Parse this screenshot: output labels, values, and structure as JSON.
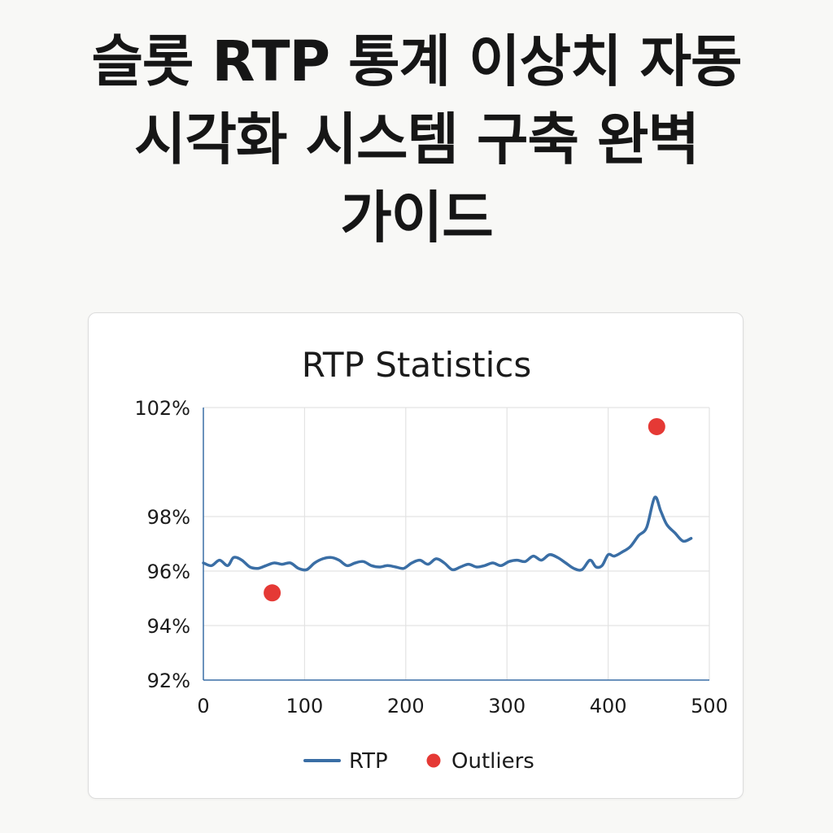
{
  "headline": "슬롯 RTP 통계 이상치 자동 시각화 시스템 구축 완벽 가이드",
  "chart_data": {
    "type": "line",
    "title": "RTP Statistics",
    "xlabel": "",
    "ylabel": "",
    "xlim": [
      0,
      500
    ],
    "ylim": [
      92,
      102
    ],
    "x_ticks": [
      0,
      100,
      200,
      300,
      400,
      500
    ],
    "y_ticks": [
      92,
      94,
      96,
      98,
      102
    ],
    "y_tick_labels": [
      "92%",
      "94%",
      "96%",
      "98%",
      "102%"
    ],
    "x_tick_labels": [
      "0",
      "100",
      "200",
      "300",
      "400",
      "500"
    ],
    "grid": true,
    "legend_position": "bottom",
    "series": [
      {
        "name": "RTP",
        "color": "#3a6ea5",
        "x": [
          0,
          8,
          16,
          24,
          30,
          38,
          46,
          54,
          62,
          70,
          78,
          86,
          94,
          102,
          110,
          118,
          126,
          134,
          142,
          150,
          158,
          166,
          174,
          182,
          190,
          198,
          206,
          214,
          222,
          230,
          238,
          246,
          254,
          262,
          270,
          278,
          286,
          294,
          302,
          310,
          318,
          326,
          334,
          342,
          350,
          358,
          366,
          374,
          382,
          388,
          394,
          400,
          406,
          414,
          422,
          430,
          438,
          446,
          452,
          458,
          466,
          474,
          482
        ],
        "y": [
          96.3,
          96.2,
          96.4,
          96.2,
          96.5,
          96.4,
          96.15,
          96.1,
          96.2,
          96.3,
          96.25,
          96.3,
          96.1,
          96.05,
          96.3,
          96.45,
          96.5,
          96.4,
          96.2,
          96.3,
          96.35,
          96.2,
          96.15,
          96.2,
          96.15,
          96.1,
          96.3,
          96.4,
          96.25,
          96.45,
          96.3,
          96.05,
          96.15,
          96.25,
          96.15,
          96.2,
          96.3,
          96.2,
          96.35,
          96.4,
          96.35,
          96.55,
          96.4,
          96.6,
          96.5,
          96.3,
          96.1,
          96.05,
          96.4,
          96.15,
          96.2,
          96.6,
          96.55,
          96.7,
          96.9,
          97.3,
          97.6,
          98.7,
          98.2,
          97.7,
          97.4,
          97.1,
          97.2
        ]
      },
      {
        "name": "Outliers",
        "color": "#e53935",
        "x": [
          68,
          448
        ],
        "y": [
          95.2,
          101.3
        ]
      }
    ]
  }
}
